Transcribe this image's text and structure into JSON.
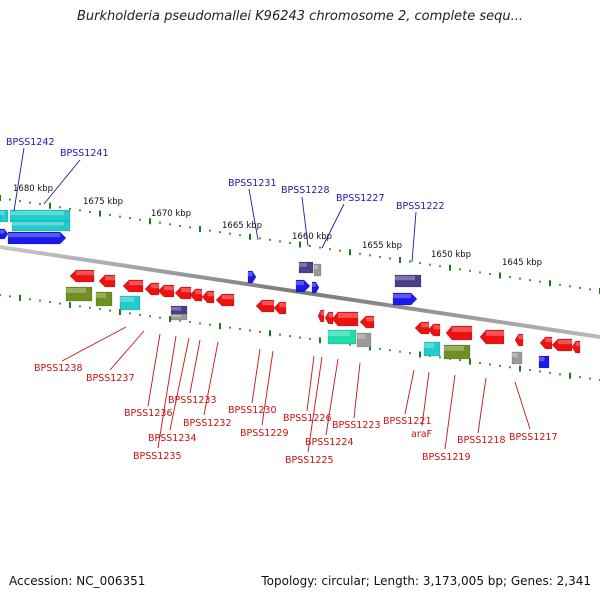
{
  "title": "Burkholderia pseudomallei K96243 chromosome 2, complete sequ...",
  "footer": {
    "accession": "Accession: NC_006351",
    "summary": "Topology: circular; Length: 3,173,005 bp; Genes: 2,341"
  },
  "colors": {
    "backbone": "#8a8a8a",
    "tick": "#1a7a1a",
    "gene_red": "#ee1111",
    "gene_blue": "#1a1aee",
    "gene_cyan": "#22cccc",
    "gene_olive": "#6f8f22",
    "gene_purple": "#4a3f8a",
    "gene_grey": "#9a9a9a",
    "gene_teal": "#22ddaa",
    "label_blue": "#1a1ab0",
    "label_red": "#cc1111"
  },
  "scale_labels": [
    "1680 kbp",
    "1675 kbp",
    "1670 kbp",
    "1665 kbp",
    "1660 kbp",
    "1655 kbp",
    "1650 kbp",
    "1645 kbp"
  ],
  "labels_top": [
    "BPSS1242",
    "BPSS1241",
    "BPSS1231",
    "BPSS1228",
    "BPSS1227",
    "BPSS1222"
  ],
  "labels_bottom": [
    "BPSS1238",
    "BPSS1237",
    "BPSS1236",
    "BPSS1235",
    "BPSS1234",
    "BPSS1233",
    "BPSS1232",
    "BPSS1230",
    "BPSS1229",
    "BPSS1226",
    "BPSS1225",
    "BPSS1224",
    "BPSS1223",
    "BPSS1221",
    "araF",
    "BPSS1219",
    "BPSS1218",
    "BPSS1217"
  ]
}
